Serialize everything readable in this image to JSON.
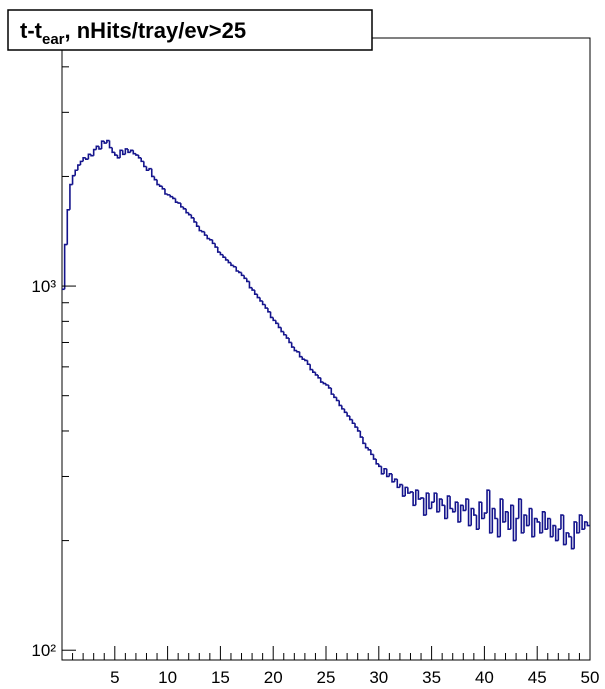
{
  "chart_data": {
    "type": "histogram",
    "title": [
      "t-t",
      "ear",
      ", nHits/tray/ev>25"
    ],
    "bins": [
      0,
      0.25,
      0.5,
      0.75,
      1,
      1.25,
      1.5,
      1.75,
      2,
      2.25,
      2.5,
      2.75,
      3,
      3.25,
      3.5,
      3.75,
      4,
      4.25,
      4.5,
      4.75,
      5,
      5.25,
      5.5,
      5.75,
      6,
      6.25,
      6.5,
      6.75,
      7,
      7.25,
      7.5,
      7.75,
      8,
      8.25,
      8.5,
      8.75,
      9,
      9.25,
      9.5,
      9.75,
      10,
      10.25,
      10.5,
      10.75,
      11,
      11.25,
      11.5,
      11.75,
      12,
      12.25,
      12.5,
      12.75,
      13,
      13.25,
      13.5,
      13.75,
      14,
      14.25,
      14.5,
      14.75,
      15,
      15.25,
      15.5,
      15.75,
      16,
      16.25,
      16.5,
      16.75,
      17,
      17.25,
      17.5,
      17.75,
      18,
      18.25,
      18.5,
      18.75,
      19,
      19.25,
      19.5,
      19.75,
      20,
      20.25,
      20.5,
      20.75,
      21,
      21.25,
      21.5,
      21.75,
      22,
      22.25,
      22.5,
      22.75,
      23,
      23.25,
      23.5,
      23.75,
      24,
      24.25,
      24.5,
      24.75,
      25,
      25.25,
      25.5,
      25.75,
      26,
      26.25,
      26.5,
      26.75,
      27,
      27.25,
      27.5,
      27.75,
      28,
      28.25,
      28.5,
      28.75,
      29,
      29.25,
      29.5,
      29.75,
      30,
      30.25,
      30.5,
      30.75,
      31,
      31.25,
      31.5,
      31.75,
      32,
      32.25,
      32.5,
      32.75,
      33,
      33.25,
      33.5,
      33.75,
      34,
      34.25,
      34.5,
      34.75,
      35,
      35.25,
      35.5,
      35.75,
      36,
      36.25,
      36.5,
      36.75,
      37,
      37.25,
      37.5,
      37.75,
      38,
      38.25,
      38.5,
      38.75,
      39,
      39.25,
      39.5,
      39.75,
      40,
      40.25,
      40.5,
      40.75,
      41,
      41.25,
      41.5,
      41.75,
      42,
      42.25,
      42.5,
      42.75,
      43,
      43.25,
      43.5,
      43.75,
      44,
      44.25,
      44.5,
      44.75,
      45,
      45.25,
      45.5,
      45.75,
      46,
      46.25,
      46.5,
      46.75,
      47,
      47.25,
      47.5,
      47.75,
      48,
      48.25,
      48.5,
      48.75,
      49,
      49.25,
      49.5,
      49.75,
      50
    ],
    "values": [
      980,
      1300,
      1620,
      1900,
      2010,
      2080,
      2150,
      2200,
      2250,
      2230,
      2300,
      2280,
      2370,
      2420,
      2380,
      2500,
      2470,
      2510,
      2400,
      2330,
      2290,
      2250,
      2360,
      2300,
      2380,
      2330,
      2360,
      2310,
      2290,
      2250,
      2200,
      2130,
      2080,
      2100,
      2000,
      1960,
      1900,
      1880,
      1850,
      1790,
      1780,
      1760,
      1740,
      1700,
      1690,
      1650,
      1630,
      1590,
      1570,
      1540,
      1500,
      1460,
      1420,
      1410,
      1380,
      1350,
      1340,
      1310,
      1280,
      1240,
      1220,
      1200,
      1180,
      1160,
      1140,
      1130,
      1100,
      1090,
      1070,
      1050,
      1030,
      990,
      975,
      950,
      930,
      910,
      890,
      870,
      850,
      820,
      805,
      790,
      770,
      750,
      735,
      720,
      700,
      680,
      665,
      660,
      640,
      630,
      625,
      610,
      590,
      580,
      570,
      560,
      545,
      540,
      535,
      525,
      505,
      495,
      485,
      470,
      460,
      450,
      440,
      430,
      420,
      410,
      400,
      385,
      370,
      360,
      355,
      345,
      335,
      325,
      320,
      305,
      315,
      300,
      305,
      290,
      295,
      280,
      285,
      265,
      280,
      270,
      272,
      250,
      275,
      260,
      262,
      235,
      270,
      245,
      255,
      270,
      240,
      260,
      250,
      230,
      265,
      245,
      240,
      255,
      225,
      250,
      242,
      260,
      220,
      245,
      235,
      215,
      255,
      230,
      238,
      275,
      210,
      245,
      230,
      205,
      260,
      225,
      240,
      215,
      250,
      200,
      230,
      260,
      210,
      235,
      220,
      245,
      205,
      230,
      225,
      210,
      240,
      215,
      230,
      205,
      220,
      200,
      215,
      235,
      195,
      210,
      205,
      190,
      225,
      210,
      235,
      215,
      225,
      220
    ],
    "color": "#14148c",
    "log_y": true,
    "xlim": [
      0,
      50
    ],
    "xticks": [
      5,
      10,
      15,
      20,
      25,
      30,
      35,
      40,
      45,
      50
    ],
    "xminorticks": [
      1,
      2,
      3,
      4,
      6,
      7,
      8,
      9,
      11,
      12,
      13,
      14,
      16,
      17,
      18,
      19,
      21,
      22,
      23,
      24,
      26,
      27,
      28,
      29,
      31,
      32,
      33,
      34,
      36,
      37,
      38,
      39,
      41,
      42,
      43,
      44,
      46,
      47,
      48,
      49
    ],
    "ylim": [
      94,
      4800
    ],
    "yticks": [
      {
        "value": 100,
        "label": "10²"
      },
      {
        "value": 1000,
        "label": "10³"
      }
    ],
    "yminorticks": [
      200,
      300,
      400,
      500,
      600,
      700,
      800,
      900,
      2000,
      3000,
      4000
    ]
  }
}
